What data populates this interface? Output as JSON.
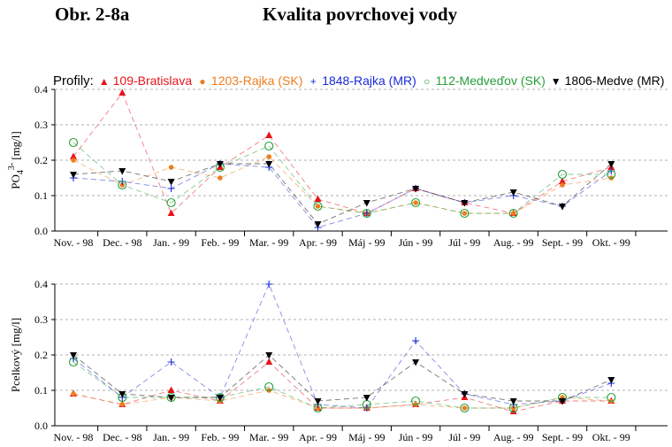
{
  "header": {
    "figure_label": "Obr. 2-8a",
    "title": "Kvalita povrchovej vody"
  },
  "legend": {
    "label": "Profily:"
  },
  "colors": {
    "grid": "#999999",
    "axis": "#000000"
  },
  "chart_data": [
    {
      "type": "line",
      "ylabel_main": "PO",
      "ylabel_sub": "4",
      "ylabel_sup": "3-",
      "ylabel_unit": "[mg/l]",
      "ylim": [
        0,
        0.4
      ],
      "yticks": [
        "0.0",
        "0.1",
        "0.2",
        "0.3",
        "0.4"
      ],
      "grid": "horizontal dashed",
      "categories": [
        "Nov. - 98",
        "Dec. - 98",
        "Jan. - 99",
        "Feb. - 99",
        "Mar. - 99",
        "Apr. - 99",
        "Máj - 99",
        "Jún - 99",
        "Júl - 99",
        "Aug. - 99",
        "Sept. - 99",
        "Okt. - 99"
      ],
      "series": [
        {
          "name": "109-Bratislava",
          "color": "#e8141b",
          "marker": "triangle-up",
          "values": [
            0.21,
            0.39,
            0.05,
            0.18,
            0.27,
            0.09,
            0.05,
            0.12,
            0.08,
            0.05,
            0.14,
            0.18
          ]
        },
        {
          "name": "1203-Rajka (SK)",
          "color": "#ee7d1e",
          "marker": "filled-circle",
          "values": [
            0.2,
            0.13,
            0.18,
            0.15,
            0.21,
            0.07,
            0.05,
            0.08,
            0.05,
            0.05,
            0.13,
            0.15
          ]
        },
        {
          "name": "1848-Rajka (MR)",
          "color": "#1a2bd6",
          "marker": "plus",
          "values": [
            0.15,
            0.14,
            0.12,
            0.19,
            0.18,
            0.01,
            0.05,
            0.12,
            0.08,
            0.1,
            0.07,
            0.17
          ]
        },
        {
          "name": "112-Medveďov (SK)",
          "color": "#25a03a",
          "marker": "open-circle",
          "values": [
            0.25,
            0.13,
            0.08,
            0.18,
            0.24,
            0.07,
            0.05,
            0.08,
            0.05,
            0.05,
            0.16,
            0.16
          ]
        },
        {
          "name": "1806-Medve (MR)",
          "color": "#000000",
          "marker": "triangle-down",
          "values": [
            0.16,
            0.17,
            0.14,
            0.19,
            0.19,
            0.02,
            0.08,
            0.12,
            0.08,
            0.11,
            0.07,
            0.19
          ]
        }
      ]
    },
    {
      "type": "line",
      "ylabel_main": "Pcelkový [mg/l]",
      "ylim": [
        0,
        0.4
      ],
      "yticks": [
        "0.0",
        "0.1",
        "0.2",
        "0.3",
        "0.4"
      ],
      "grid": "horizontal dashed",
      "categories": [
        "Nov. - 98",
        "Dec. - 98",
        "Jan. - 99",
        "Feb. - 99",
        "Mar. - 99",
        "Apr. - 99",
        "Máj - 99",
        "Jún - 99",
        "Júl - 99",
        "Aug. - 99",
        "Sept. - 99",
        "Okt. - 99"
      ],
      "series": [
        {
          "name": "109-Bratislava",
          "color": "#e8141b",
          "marker": "triangle-up",
          "values": [
            0.09,
            0.06,
            0.1,
            0.07,
            0.18,
            0.05,
            0.05,
            0.06,
            0.08,
            0.04,
            0.07,
            0.07
          ]
        },
        {
          "name": "1203-Rajka (SK)",
          "color": "#ee7d1e",
          "marker": "filled-circle",
          "values": [
            0.09,
            0.06,
            0.08,
            0.07,
            0.1,
            0.05,
            0.05,
            0.06,
            0.05,
            0.05,
            0.08,
            0.07
          ]
        },
        {
          "name": "1848-Rajka (MR)",
          "color": "#1a2bd6",
          "marker": "plus",
          "values": [
            0.19,
            0.08,
            0.18,
            0.08,
            0.4,
            0.06,
            0.05,
            0.24,
            0.09,
            0.06,
            0.07,
            0.12
          ]
        },
        {
          "name": "112-Medveďov (SK)",
          "color": "#25a03a",
          "marker": "open-circle",
          "values": [
            0.18,
            0.08,
            0.08,
            0.08,
            0.11,
            0.05,
            0.06,
            0.07,
            0.05,
            0.05,
            0.08,
            0.08
          ]
        },
        {
          "name": "1806-Medve (MR)",
          "color": "#000000",
          "marker": "triangle-down",
          "values": [
            0.2,
            0.09,
            0.08,
            0.08,
            0.2,
            0.07,
            0.08,
            0.18,
            0.09,
            0.07,
            0.07,
            0.13
          ]
        }
      ]
    }
  ]
}
